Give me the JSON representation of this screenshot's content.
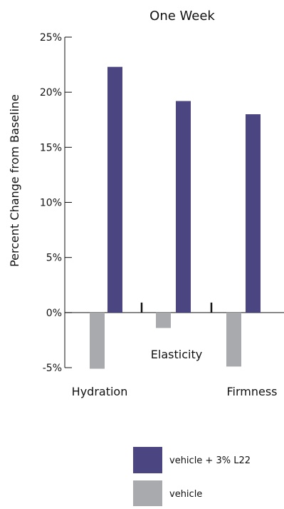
{
  "chart_data": {
    "type": "bar",
    "title": "One Week",
    "ylabel": "Percent Change from Baseline",
    "xlabel": "",
    "categories": [
      "Hydration",
      "Elasticity",
      "Firmness"
    ],
    "series": [
      {
        "name": "vehicle + 3% L22",
        "color": "#4b4582",
        "values": [
          22.3,
          19.2,
          18.0
        ]
      },
      {
        "name": "vehicle",
        "color": "#a9aaad",
        "values": [
          -5.1,
          -1.4,
          -4.9
        ]
      }
    ],
    "ylim": [
      -5,
      25
    ],
    "yticks": [
      "25%",
      "20%",
      "15%",
      "10%",
      "5%",
      "0%",
      "-5%"
    ],
    "legend_position": "bottom-right",
    "grid": false
  }
}
